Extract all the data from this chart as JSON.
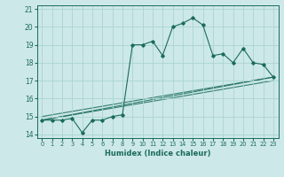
{
  "xlabel": "Humidex (Indice chaleur)",
  "ylabel": "",
  "background_color": "#cde8e8",
  "grid_color": "#a8d4d4",
  "line_color": "#1a6b5a",
  "xlim": [
    -0.5,
    23.5
  ],
  "ylim": [
    13.8,
    21.2
  ],
  "yticks": [
    14,
    15,
    16,
    17,
    18,
    19,
    20,
    21
  ],
  "xticks": [
    0,
    1,
    2,
    3,
    4,
    5,
    6,
    7,
    8,
    9,
    10,
    11,
    12,
    13,
    14,
    15,
    16,
    17,
    18,
    19,
    20,
    21,
    22,
    23
  ],
  "series1_x": [
    0,
    1,
    2,
    3,
    4,
    5,
    6,
    7,
    8,
    9,
    10,
    11,
    12,
    13,
    14,
    15,
    16,
    17,
    18,
    19,
    20,
    21,
    22,
    23
  ],
  "series1_y": [
    14.8,
    14.8,
    14.8,
    14.9,
    14.1,
    14.8,
    14.8,
    15.0,
    15.1,
    19.0,
    19.0,
    19.2,
    18.4,
    20.0,
    20.2,
    20.5,
    20.1,
    18.4,
    18.5,
    18.0,
    18.8,
    18.0,
    17.9,
    17.2
  ],
  "series2_x": [
    0,
    23
  ],
  "series2_y": [
    14.8,
    17.2
  ],
  "series3_x": [
    0,
    23
  ],
  "series3_y": [
    14.8,
    17.0
  ],
  "series4_x": [
    0,
    23
  ],
  "series4_y": [
    15.0,
    17.2
  ]
}
